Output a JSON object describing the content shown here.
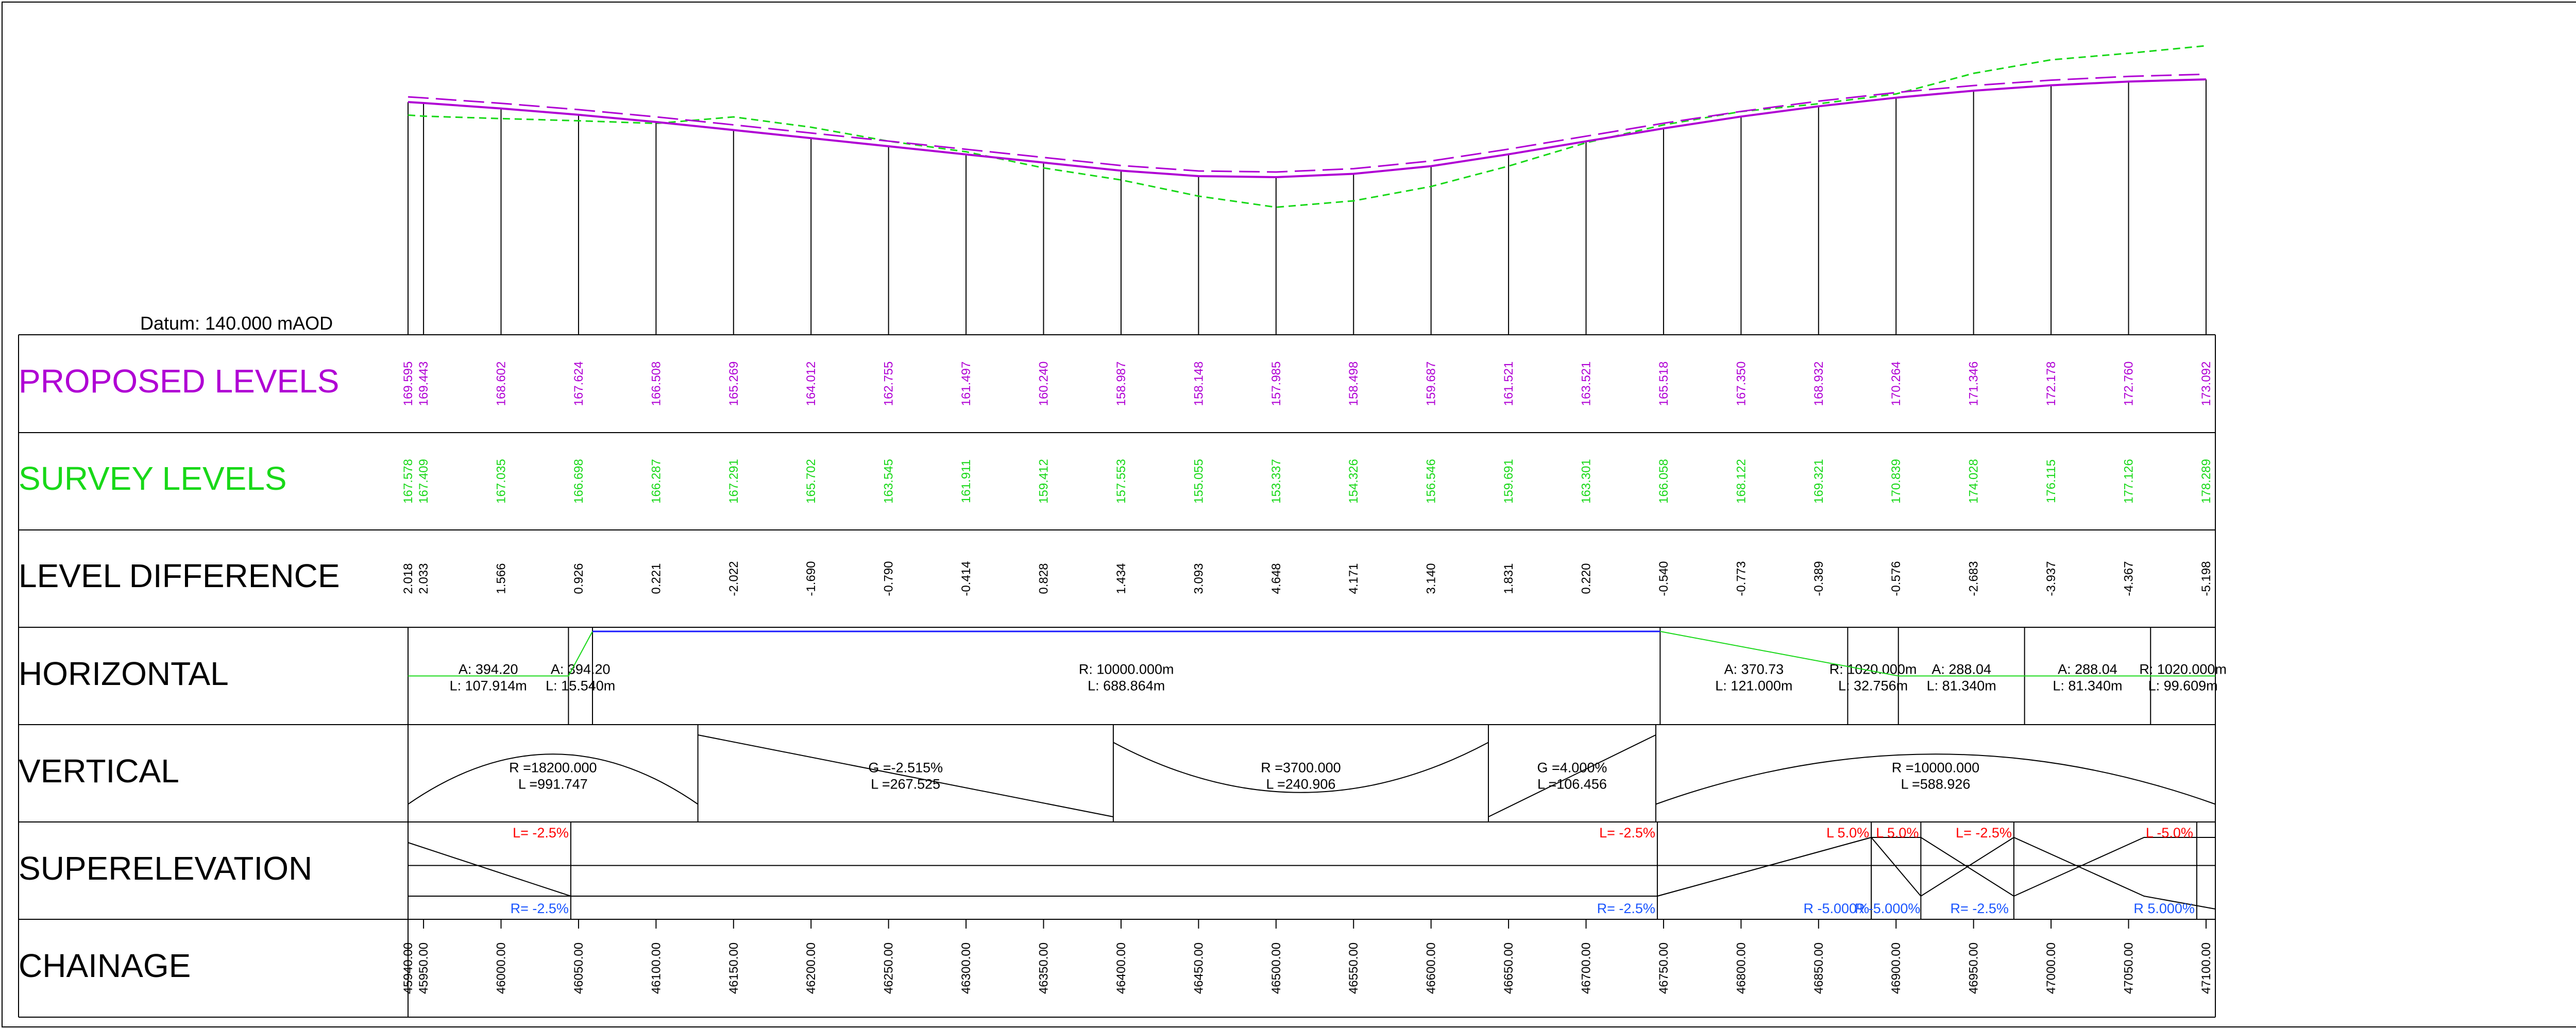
{
  "datum_label": "Datum: 140.000 mAOD",
  "colors": {
    "proposed": "#b000d4",
    "survey": "#18d818",
    "design_dashed": "#b000d4",
    "horizontal_line": "#1a1aff",
    "left_super": "#ff0000",
    "right_super": "#1a55ff",
    "grid": "#000000"
  },
  "rows": {
    "proposed": "PROPOSED LEVELS",
    "survey": "SURVEY LEVELS",
    "difference": "LEVEL DIFFERENCE",
    "horizontal": "HORIZONTAL",
    "vertical": "VERTICAL",
    "superelevation": "SUPERELEVATION",
    "chainage": "CHAINAGE"
  },
  "chart_data": {
    "type": "line",
    "xlabel": "CHAINAGE",
    "xlim": [
      45940,
      47106
    ],
    "ylim": [
      140,
      176
    ],
    "chainage": [
      "45940.00",
      "45950.00",
      "46000.00",
      "46050.00",
      "46100.00",
      "46150.00",
      "46200.00",
      "46250.00",
      "46300.00",
      "46350.00",
      "46400.00",
      "46450.00",
      "46500.00",
      "46550.00",
      "46600.00",
      "46650.00",
      "46700.00",
      "46750.00",
      "46800.00",
      "46850.00",
      "46900.00",
      "46950.00",
      "47000.00",
      "47050.00",
      "47100.00"
    ],
    "proposed_levels": [
      "169.595",
      "169.443",
      "168.602",
      "167.624",
      "166.508",
      "165.269",
      "164.012",
      "162.755",
      "161.497",
      "160.240",
      "158.987",
      "158.148",
      "157.985",
      "158.498",
      "159.687",
      "161.521",
      "163.521",
      "165.518",
      "167.350",
      "168.932",
      "170.264",
      "171.346",
      "172.178",
      "172.760",
      "173.092"
    ],
    "survey_levels": [
      "167.578",
      "167.409",
      "167.035",
      "166.698",
      "166.287",
      "167.291",
      "165.702",
      "163.545",
      "161.911",
      "159.412",
      "157.553",
      "155.055",
      "153.337",
      "154.326",
      "156.546",
      "159.691",
      "163.301",
      "166.058",
      "168.122",
      "169.321",
      "170.839",
      "174.028",
      "176.115",
      "177.126",
      "178.289"
    ],
    "level_difference": [
      "2.018",
      "2.033",
      "1.566",
      "0.926",
      "0.221",
      "-2.022",
      "-1.690",
      "-0.790",
      "-0.414",
      "0.828",
      "1.434",
      "3.093",
      "4.648",
      "4.171",
      "3.140",
      "1.831",
      "0.220",
      "-0.540",
      "-0.773",
      "-0.389",
      "-0.576",
      "-2.683",
      "-3.937",
      "-4.367",
      "-5.198"
    ],
    "horizontal_elements": [
      {
        "line1": "A: 394.20",
        "line2": "L: 107.914m",
        "from": 45940,
        "to": 46043.5
      },
      {
        "line1": "A: 394.20",
        "line2": "L: 15.540m",
        "from": 46043.5,
        "to": 46059
      },
      {
        "line1": "R: 10000.000m",
        "line2": "L: 688.864m",
        "from": 46059,
        "to": 46747.8
      },
      {
        "line1": "A: 370.73",
        "line2": "L: 121.000m",
        "from": 46747.8,
        "to": 46868.8
      },
      {
        "line1": "R: 1020.000m",
        "line2": "L: 32.756m",
        "from": 46868.8,
        "to": 46901.5
      },
      {
        "line1": "A: 288.04",
        "line2": "L: 81.340m",
        "from": 46901.5,
        "to": 46982.9
      },
      {
        "line1": "A: 288.04",
        "line2": "L: 81.340m",
        "from": 46982.9,
        "to": 47064.2
      },
      {
        "line1": "R: 1020.000m",
        "line2": "L: 99.609m",
        "from": 47064.2,
        "to": 47106
      }
    ],
    "vertical_elements": [
      {
        "line1": "R =18200.000",
        "line2": "L =991.747",
        "from": 45940,
        "to": 46127,
        "shape": "crest"
      },
      {
        "line1": "G =-2.515%",
        "line2": "L =267.525",
        "from": 46127,
        "to": 46395,
        "shape": "grade-down"
      },
      {
        "line1": "R =3700.000",
        "line2": "L =240.906",
        "from": 46395,
        "to": 46637,
        "shape": "sag"
      },
      {
        "line1": "G =4.000%",
        "line2": "L =106.456",
        "from": 46637,
        "to": 46745,
        "shape": "grade-up"
      },
      {
        "line1": "R =10000.000",
        "line2": "L =588.926",
        "from": 46745,
        "to": 47106,
        "shape": "crest"
      }
    ],
    "superelevation": {
      "left": [
        {
          "label": "L= -2.5%",
          "at": 46045
        },
        {
          "label": "L= -2.5%",
          "at": 46746
        },
        {
          "label": "L 5.0%",
          "at": 46884
        },
        {
          "label": "L 5.0%",
          "at": 46916
        },
        {
          "label": "L= -2.5%",
          "at": 46976
        },
        {
          "label": "L -5.0%",
          "at": 47093
        }
      ],
      "right": [
        {
          "label": "R= -2.5%",
          "at": 46045
        },
        {
          "label": "R= -2.5%",
          "at": 46746
        },
        {
          "label": "R -5.000%",
          "at": 46884
        },
        {
          "label": "R -5.000%",
          "at": 46917
        },
        {
          "label": "R= -2.5%",
          "at": 46974
        },
        {
          "label": "R 5.000%",
          "at": 47094
        }
      ]
    }
  }
}
